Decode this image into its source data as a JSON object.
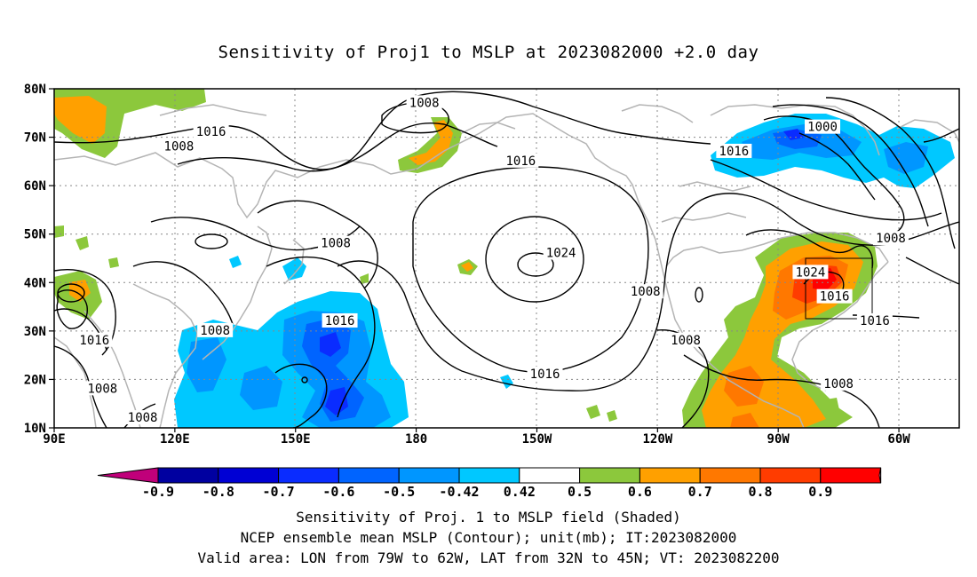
{
  "title": "Sensitivity of Proj1 to MSLP at 2023082000 +2.0 day",
  "axes": {
    "lat_ticks": [
      "80N",
      "70N",
      "60N",
      "50N",
      "40N",
      "30N",
      "20N",
      "10N"
    ],
    "lon_ticks": [
      "90E",
      "120E",
      "150E",
      "180",
      "150W",
      "120W",
      "90W",
      "60W"
    ]
  },
  "contour_labels": [
    {
      "text": "1008",
      "lon": 182,
      "lat": 77
    },
    {
      "text": "1016",
      "lon": 129,
      "lat": 71
    },
    {
      "text": "1008",
      "lon": 121,
      "lat": 68
    },
    {
      "text": "1016",
      "lon": 206,
      "lat": 65
    },
    {
      "text": "1016",
      "lon": 259,
      "lat": 67
    },
    {
      "text": "1000",
      "lon": 281,
      "lat": 72
    },
    {
      "text": "1024",
      "lon": 216,
      "lat": 46
    },
    {
      "text": "1008",
      "lon": 160,
      "lat": 48
    },
    {
      "text": "1008",
      "lon": 237,
      "lat": 38
    },
    {
      "text": "1024",
      "lon": 278,
      "lat": 42
    },
    {
      "text": "1016",
      "lon": 284,
      "lat": 37
    },
    {
      "text": "1016",
      "lon": 294,
      "lat": 32
    },
    {
      "text": "1008",
      "lon": 298,
      "lat": 49
    },
    {
      "text": "1016",
      "lon": 161,
      "lat": 32
    },
    {
      "text": "1008",
      "lon": 130,
      "lat": 30
    },
    {
      "text": "1016",
      "lon": 100,
      "lat": 28
    },
    {
      "text": "1016",
      "lon": 212,
      "lat": 21
    },
    {
      "text": "1008",
      "lon": 247,
      "lat": 28
    },
    {
      "text": "1008",
      "lon": 102,
      "lat": 18
    },
    {
      "text": "1008",
      "lon": 112,
      "lat": 12
    },
    {
      "text": "1008",
      "lon": 285,
      "lat": 19
    }
  ],
  "colorbar": {
    "labels": [
      "-0.9",
      "-0.8",
      "-0.7",
      "-0.6",
      "-0.5",
      "-0.42",
      "0.42",
      "0.5",
      "0.6",
      "0.7",
      "0.8",
      "0.9"
    ],
    "colors": [
      "#c0007a",
      "#0000a0",
      "#0000d4",
      "#0a2cff",
      "#0064ff",
      "#0096ff",
      "#00c8ff",
      "#ffffff",
      "#8cc83c",
      "#ffa000",
      "#ff7800",
      "#ff3c00",
      "#ff0000",
      "#ffa0c8"
    ]
  },
  "shading_colors": {
    "neg_weak": "#00c8ff",
    "neg_mid": "#0096ff",
    "neg_strong": "#0064ff",
    "neg_max": "#0a2cff",
    "pos_weak": "#8cc83c",
    "pos_mid": "#ffa000",
    "pos_strong": "#ff7800",
    "pos_max": "#ff0000",
    "coast": "#b4b4b4"
  },
  "valid_box": {
    "lon_min": 281,
    "lon_max": 298,
    "lat_min": 32,
    "lat_max": 45
  },
  "footer": {
    "line1": "Sensitivity of Proj. 1 to MSLP field (Shaded)",
    "line2": "NCEP ensemble mean MSLP (Contour); unit(mb); IT:2023082000",
    "line3": "Valid area: LON from 79W to 62W, LAT from 32N to 45N; VT: 2023082200"
  }
}
